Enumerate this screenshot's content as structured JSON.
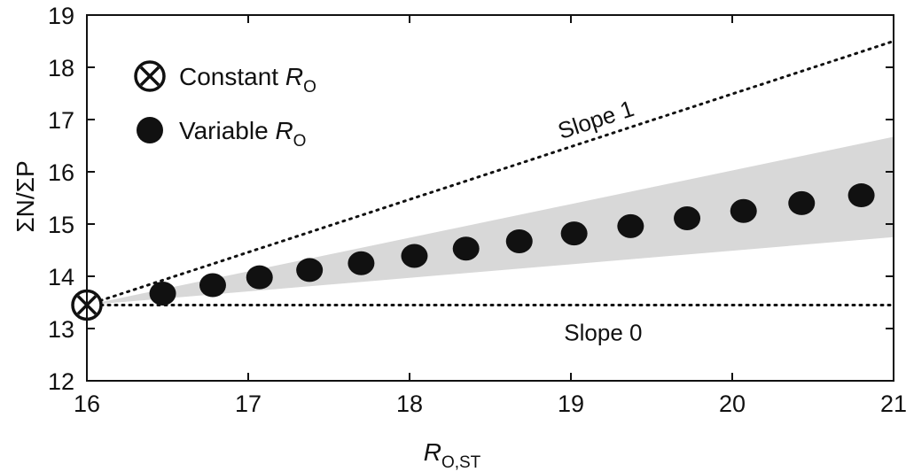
{
  "chart_data": {
    "type": "scatter",
    "xlabel": {
      "main": "R",
      "sub": "O,ST"
    },
    "ylabel": "ΣN/ΣP",
    "xlim": [
      16,
      21
    ],
    "ylim": [
      12,
      19
    ],
    "xticks": [
      "16",
      "17",
      "18",
      "19",
      "20",
      "21"
    ],
    "yticks": [
      "12",
      "13",
      "14",
      "15",
      "16",
      "17",
      "18",
      "19"
    ],
    "series": [
      {
        "name": {
          "prefix": "Constant ",
          "main": "R",
          "sub": "O"
        },
        "marker": "circle-x",
        "points": [
          [
            16.0,
            13.45
          ]
        ]
      },
      {
        "name": {
          "prefix": "Variable ",
          "main": "R",
          "sub": "O"
        },
        "marker": "filled-circle",
        "points": [
          [
            16.47,
            13.67
          ],
          [
            16.78,
            13.83
          ],
          [
            17.07,
            13.98
          ],
          [
            17.38,
            14.12
          ],
          [
            17.7,
            14.25
          ],
          [
            18.03,
            14.39
          ],
          [
            18.35,
            14.53
          ],
          [
            18.68,
            14.67
          ],
          [
            19.02,
            14.82
          ],
          [
            19.37,
            14.96
          ],
          [
            19.72,
            15.11
          ],
          [
            20.07,
            15.25
          ],
          [
            20.43,
            15.4
          ],
          [
            20.8,
            15.55
          ]
        ]
      }
    ],
    "band": {
      "color": "#d8d8d8",
      "lower": [
        [
          16.0,
          13.45
        ],
        [
          21.0,
          14.75
        ]
      ],
      "upper": [
        [
          16.0,
          13.45
        ],
        [
          21.0,
          16.67
        ]
      ]
    },
    "reference_lines": [
      {
        "label": "Slope 1",
        "points": [
          [
            16.0,
            13.45
          ],
          [
            21.0,
            18.5
          ]
        ],
        "style": "dotted"
      },
      {
        "label": "Slope 0",
        "points": [
          [
            16.0,
            13.45
          ],
          [
            21.0,
            13.45
          ]
        ],
        "style": "dotted"
      }
    ],
    "grid": false,
    "legend_position": "top-left"
  }
}
